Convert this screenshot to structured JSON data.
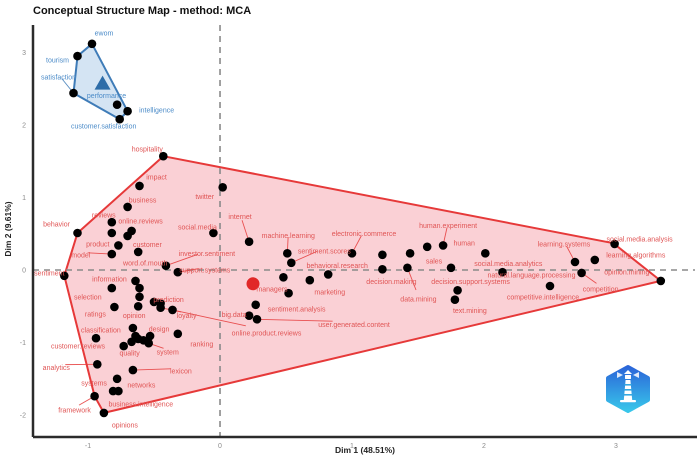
{
  "title": "Conceptual Structure Map - method: MCA",
  "axes": {
    "x_label": "Dim 1 (48.51%)",
    "y_label": "Dim 2 (9.61%)",
    "x_ticks": [
      -1,
      0,
      1,
      2,
      3
    ],
    "y_ticks": [
      -2,
      -1,
      0,
      1,
      2,
      3
    ],
    "tick_color": "#8c8c8c",
    "axis_color": "#2b2b2b"
  },
  "colors": {
    "red_line": "#e63939",
    "red_fill": "rgba(246,170,178,0.55)",
    "red_label": "#e05555",
    "blue_line": "#3f7cb8",
    "blue_fill": "rgba(176,205,233,0.55)",
    "blue_label": "#4b8bc8",
    "dot": "#000000",
    "highlight_dot": "#e12828",
    "ref_line": "#8a8a8a",
    "triangle": "#2e6da8"
  },
  "chart_data": {
    "type": "scatter",
    "title": "Conceptual Structure Map - method: MCA",
    "xlabel": "Dim 1 (48.51%)",
    "ylabel": "Dim 2 (9.61%)",
    "xlim": [
      -1.417,
      3.614
    ],
    "ylim": [
      -2.303,
      3.379
    ],
    "grid": false,
    "reference_lines": {
      "x": 0,
      "y": 0
    },
    "clusters": [
      {
        "name": "blue-cluster",
        "line": "#3f7cb8",
        "fill": "rgba(176,205,233,0.55)",
        "label_color": "#4b8bc8",
        "centroid": {
          "x": -0.89,
          "y": 2.57,
          "marker": "triangle"
        },
        "hull": [
          [
            -0.97,
            3.12
          ],
          [
            -0.7,
            2.19
          ],
          [
            -0.76,
            2.08
          ],
          [
            -1.11,
            2.44
          ],
          [
            -1.08,
            2.95
          ]
        ],
        "keywords": [
          {
            "t": "ewom",
            "x": -0.97,
            "y": 3.12,
            "dx": 12,
            "dy": -11
          },
          {
            "t": "tourism",
            "x": -1.08,
            "y": 2.95,
            "dx": -20,
            "dy": 4
          },
          {
            "t": "satisfaction",
            "x": -1.11,
            "y": 2.44,
            "dx": -15,
            "dy": -16,
            "leader": true
          },
          {
            "t": "performance",
            "x": -0.86,
            "y": 2.41,
            "dx": 0,
            "dy": 0,
            "nd": true
          },
          {
            "t": "intelligence",
            "x": -0.7,
            "y": 2.19,
            "dx": 29,
            "dy": -1
          },
          {
            "t": "customer.satisfaction",
            "x": -0.76,
            "y": 2.08,
            "dx": -16,
            "dy": 7
          }
        ]
      },
      {
        "name": "red-cluster",
        "line": "#e63939",
        "fill": "rgba(246,170,178,0.55)",
        "label_color": "#e05555",
        "hull": [
          [
            -0.43,
            1.57
          ],
          [
            2.98,
            0.37
          ],
          [
            3.34,
            -0.15
          ],
          [
            -0.88,
            -1.97
          ],
          [
            -0.95,
            -1.74
          ],
          [
            -1.18,
            -0.08
          ],
          [
            -1.08,
            0.51
          ]
        ],
        "keywords": [
          {
            "t": "hospitality",
            "x": -0.43,
            "y": 1.57,
            "dx": -16,
            "dy": -7
          },
          {
            "t": "impact",
            "x": -0.61,
            "y": 1.16,
            "dx": 17,
            "dy": -9
          },
          {
            "t": "business",
            "x": -0.7,
            "y": 0.87,
            "dx": 15,
            "dy": -7
          },
          {
            "t": "reviews",
            "x": -0.82,
            "y": 0.66,
            "dx": -8,
            "dy": -7
          },
          {
            "t": "behavior",
            "x": -1.08,
            "y": 0.51,
            "dx": -21,
            "dy": -9
          },
          {
            "t": "online.reviews",
            "x": -0.67,
            "y": 0.54,
            "dx": 9,
            "dy": -10
          },
          {
            "t": "social.media",
            "x": -0.05,
            "y": 0.51,
            "dx": -16,
            "dy": -6
          },
          {
            "t": "twitter",
            "x": 0.02,
            "y": 1.14,
            "dx": -18,
            "dy": 9
          },
          {
            "t": "internet",
            "x": 0.22,
            "y": 0.39,
            "dx": -9,
            "dy": -25,
            "leader": true
          },
          {
            "t": "product",
            "x": -0.82,
            "y": 0.51,
            "dx": -14,
            "dy": 11
          },
          {
            "t": "customer",
            "x": -0.77,
            "y": 0.34,
            "dx": 29,
            "dy": -1
          },
          {
            "t": "model",
            "x": -0.82,
            "y": 0.22,
            "dx": -31,
            "dy": 1,
            "leader": true
          },
          {
            "t": "word.of.mouth",
            "x": -0.62,
            "y": 0.25,
            "dx": 7,
            "dy": 11
          },
          {
            "t": "investor.sentiment",
            "x": -0.41,
            "y": 0.06,
            "dx": 41,
            "dy": -12,
            "leader": true
          },
          {
            "t": "sentiment",
            "x": -1.18,
            "y": -0.08,
            "dx": -15,
            "dy": -3
          },
          {
            "t": "support.systems",
            "x": -0.32,
            "y": -0.03,
            "dx": 27,
            "dy": -2,
            "leader": true
          },
          {
            "t": "information",
            "x": -0.64,
            "y": -0.15,
            "dx": -26,
            "dy": -2
          },
          {
            "t": "selection",
            "x": -0.82,
            "y": -0.25,
            "dx": -24,
            "dy": 9
          },
          {
            "t": "prediction",
            "x": -0.45,
            "y": -0.46,
            "dx": 8,
            "dy": -4
          },
          {
            "t": "ratings",
            "x": -0.8,
            "y": -0.51,
            "dx": -19,
            "dy": 7
          },
          {
            "t": "opinion",
            "x": -0.62,
            "y": -0.5,
            "dx": -4,
            "dy": 9
          },
          {
            "t": "loyalty",
            "x": -0.45,
            "y": -0.52,
            "dx": 26,
            "dy": 8,
            "leader": true
          },
          {
            "t": "big.data",
            "x": 0.22,
            "y": -0.63,
            "dx": -15,
            "dy": -1
          },
          {
            "t": "sentiment.analysis",
            "x": 0.27,
            "y": -0.48,
            "dx": 41,
            "dy": 4
          },
          {
            "t": "user.generated.content",
            "x": 0.28,
            "y": -0.68,
            "dx": 97,
            "dy": 5,
            "leader": true
          },
          {
            "t": "online.product.reviews",
            "x": -0.36,
            "y": -0.55,
            "dx": 94,
            "dy": 23,
            "leader": true
          },
          {
            "t": "classification",
            "x": -0.66,
            "y": -0.8,
            "dx": -32,
            "dy": 2
          },
          {
            "t": "design",
            "x": -0.53,
            "y": -0.91,
            "dx": 9,
            "dy": -7
          },
          {
            "t": "quality",
            "x": -0.67,
            "y": -0.99,
            "dx": -2,
            "dy": 11
          },
          {
            "t": "system",
            "x": -0.54,
            "y": -1.01,
            "dx": 19,
            "dy": 9,
            "leader": true
          },
          {
            "t": "ranking",
            "x": -0.32,
            "y": -0.88,
            "dx": 24,
            "dy": 10
          },
          {
            "t": "customer.reviews",
            "x": -0.94,
            "y": -0.94,
            "dx": -18,
            "dy": 8
          },
          {
            "t": "analytics",
            "x": -0.93,
            "y": -1.3,
            "dx": -41,
            "dy": 3,
            "leader": true
          },
          {
            "t": "lexicon",
            "x": -0.66,
            "y": -1.38,
            "dx": 48,
            "dy": 1,
            "leader": true
          },
          {
            "t": "systems",
            "x": -0.78,
            "y": -1.5,
            "dx": -23,
            "dy": 4
          },
          {
            "t": "networks",
            "x": -0.77,
            "y": -1.67,
            "dx": 23,
            "dy": -6
          },
          {
            "t": "framework",
            "x": -0.95,
            "y": -1.74,
            "dx": -20,
            "dy": 14,
            "leader": true
          },
          {
            "t": "business.intelligence",
            "x": -0.6,
            "y": -1.85,
            "dx": 0,
            "dy": 0,
            "nd": true
          },
          {
            "t": "opinions",
            "x": -0.88,
            "y": -1.97,
            "dx": 21,
            "dy": 12
          },
          {
            "t": "marketing",
            "x": 0.68,
            "y": -0.14,
            "dx": 20,
            "dy": 12
          },
          {
            "t": "managers",
            "x": 0.25,
            "y": -0.19,
            "dx": 19,
            "dy": 5,
            "hl": true
          },
          {
            "t": "machine.learning",
            "x": 0.51,
            "y": 0.23,
            "dx": 1,
            "dy": -18,
            "leader": true
          },
          {
            "t": "sentiment.scores",
            "x": 0.54,
            "y": 0.1,
            "dx": 33,
            "dy": -12,
            "leader": true
          },
          {
            "t": "behavioral.research",
            "x": 0.82,
            "y": -0.06,
            "dx": 9,
            "dy": -9
          },
          {
            "t": "electronic.commerce",
            "x": 1.0,
            "y": 0.23,
            "dx": 12,
            "dy": -20,
            "leader": true
          },
          {
            "t": "human.experiment",
            "x": 1.69,
            "y": 0.34,
            "dx": 5,
            "dy": -20,
            "leader": true
          },
          {
            "t": "human",
            "x": 1.85,
            "y": 0.37,
            "dx": 0,
            "dy": 0,
            "nd": true
          },
          {
            "t": "sales",
            "x": 1.75,
            "y": 0.03,
            "dx": -17,
            "dy": -7
          },
          {
            "t": "social.media.analytics",
            "x": 2.01,
            "y": 0.23,
            "dx": 23,
            "dy": 10
          },
          {
            "t": "decision.making",
            "x": 1.23,
            "y": 0.01,
            "dx": 9,
            "dy": 12
          },
          {
            "t": "data.mining",
            "x": 1.42,
            "y": 0.03,
            "dx": 11,
            "dy": 31,
            "leader": true
          },
          {
            "t": "decision.support.systems",
            "x": 1.8,
            "y": -0.28,
            "dx": 13,
            "dy": -9
          },
          {
            "t": "text.mining",
            "x": 1.78,
            "y": -0.41,
            "dx": 15,
            "dy": 11
          },
          {
            "t": "natural.language.processing",
            "x": 2.14,
            "y": -0.03,
            "dx": 29,
            "dy": 3
          },
          {
            "t": "competitive.intelligence",
            "x": 2.5,
            "y": -0.22,
            "dx": -7,
            "dy": 11
          },
          {
            "t": "learning.systems",
            "x": 2.69,
            "y": 0.11,
            "dx": -11,
            "dy": -18,
            "leader": true
          },
          {
            "t": "social.media.analysis",
            "x": 2.99,
            "y": 0.36,
            "dx": 25,
            "dy": -5
          },
          {
            "t": "learning.algorithms",
            "x": 2.84,
            "y": 0.14,
            "dx": 41,
            "dy": -5
          },
          {
            "t": "opinion.mining",
            "x": 3.34,
            "y": -0.15,
            "dx": -34,
            "dy": -9
          },
          {
            "t": "competition",
            "x": 2.74,
            "y": -0.04,
            "dx": 19,
            "dy": 16,
            "leader": true
          }
        ]
      }
    ],
    "unlabeled_points": [
      [
        -0.78,
        2.28
      ],
      [
        -0.61,
        -0.25
      ],
      [
        -0.61,
        -0.37
      ],
      [
        -0.5,
        -0.44
      ],
      [
        -0.73,
        -1.05
      ],
      [
        -0.64,
        -0.91
      ],
      [
        -0.62,
        -0.95
      ],
      [
        -0.58,
        -0.97
      ],
      [
        -0.81,
        -1.67
      ],
      [
        0.48,
        -0.1
      ],
      [
        0.52,
        -0.32
      ],
      [
        1.23,
        0.21
      ],
      [
        1.44,
        0.23
      ],
      [
        1.57,
        0.32
      ],
      [
        -0.7,
        0.47
      ]
    ]
  },
  "logo_name": "bibliometrix-logo"
}
